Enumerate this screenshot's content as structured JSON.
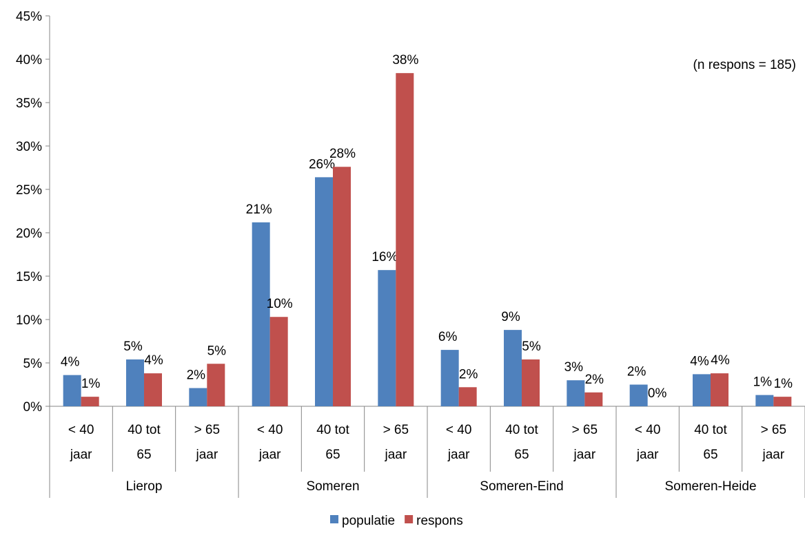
{
  "chart_data": {
    "type": "bar",
    "title": "",
    "xlabel": "",
    "ylabel": "",
    "ylim": [
      0,
      45
    ],
    "y_ticks": [
      "0%",
      "5%",
      "10%",
      "15%",
      "20%",
      "25%",
      "30%",
      "35%",
      "40%",
      "45%"
    ],
    "groups": [
      {
        "label": "Lierop",
        "categories": [
          [
            "< 40",
            "jaar"
          ],
          [
            "40 tot",
            "65"
          ],
          [
            "> 65",
            "jaar"
          ]
        ]
      },
      {
        "label": "Someren",
        "categories": [
          [
            "< 40",
            "jaar"
          ],
          [
            "40 tot",
            "65"
          ],
          [
            "> 65",
            "jaar"
          ]
        ]
      },
      {
        "label": "Someren-Eind",
        "categories": [
          [
            "< 40",
            "jaar"
          ],
          [
            "40 tot",
            "65"
          ],
          [
            "> 65",
            "jaar"
          ]
        ]
      },
      {
        "label": "Someren-Heide",
        "categories": [
          [
            "< 40",
            "jaar"
          ],
          [
            "40 tot",
            "65"
          ],
          [
            "> 65",
            "jaar"
          ]
        ]
      }
    ],
    "series": [
      {
        "name": "populatie",
        "color": "#4F81BD",
        "values": [
          3.6,
          5.4,
          2.1,
          21.2,
          26.4,
          15.7,
          6.5,
          8.8,
          3.0,
          2.5,
          3.7,
          1.3
        ],
        "labels": [
          "4%",
          "5%",
          "2%",
          "21%",
          "26%",
          "16%",
          "6%",
          "9%",
          "3%",
          "2%",
          "4%",
          "1%"
        ]
      },
      {
        "name": "respons",
        "color": "#C0504D",
        "values": [
          1.1,
          3.8,
          4.9,
          10.3,
          27.6,
          38.4,
          2.2,
          5.4,
          1.6,
          0.0,
          3.8,
          1.1
        ],
        "labels": [
          "1%",
          "4%",
          "5%",
          "10%",
          "28%",
          "38%",
          "2%",
          "5%",
          "2%",
          "0%",
          "4%",
          "1%"
        ]
      }
    ],
    "annotation": "(n respons = 185)",
    "grid": false,
    "legend_position": "bottom"
  }
}
